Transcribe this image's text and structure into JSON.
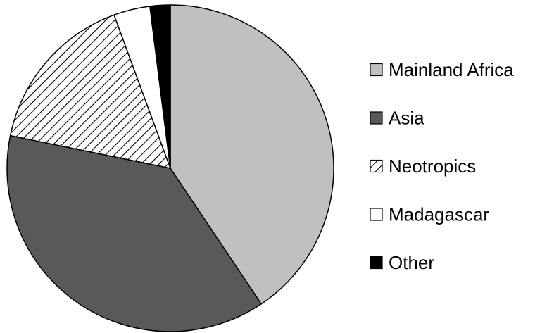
{
  "chart_data": {
    "type": "pie",
    "slices": [
      {
        "label": "Mainland Africa",
        "value": 40.6,
        "color": "#c0c0c0",
        "pattern": "solid"
      },
      {
        "label": "Asia",
        "value": 37.6,
        "color": "#595959",
        "pattern": "solid"
      },
      {
        "label": "Neotropics",
        "value": 16.2,
        "color": "#ffffff",
        "pattern": "diagonal-hatch"
      },
      {
        "label": "Madagascar",
        "value": 3.6,
        "color": "#ffffff",
        "pattern": "solid"
      },
      {
        "label": "Other",
        "value": 2.0,
        "color": "#000000",
        "pattern": "solid"
      }
    ],
    "start_angle": "12 o'clock",
    "direction": "clockwise",
    "legend": "right",
    "title": ""
  }
}
